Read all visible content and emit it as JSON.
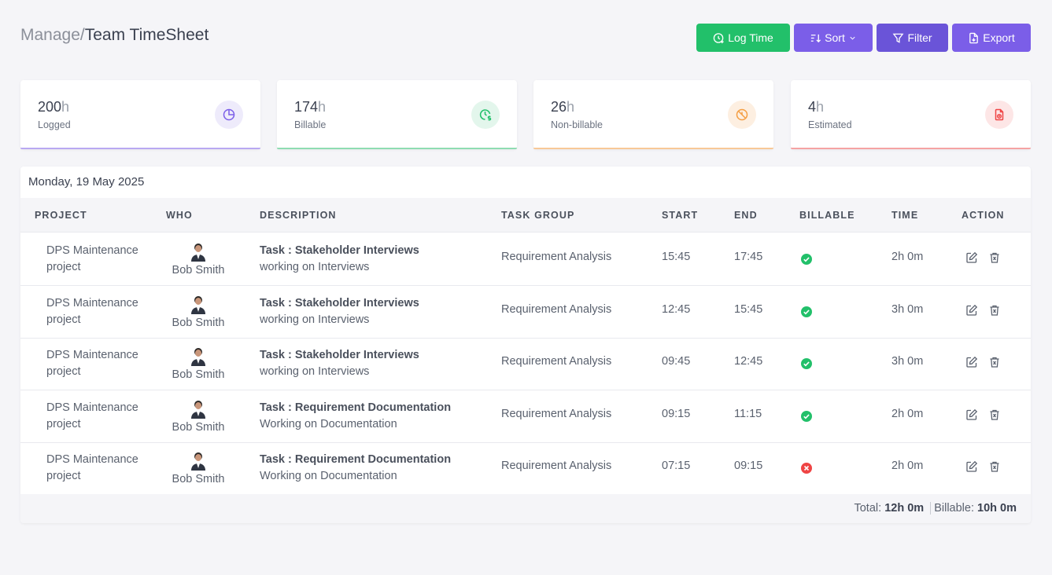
{
  "breadcrumb": {
    "parent": "Manage",
    "separator": "/",
    "current": "Team TimeSheet"
  },
  "toolbar": {
    "log_time": "Log Time",
    "sort": "Sort",
    "filter": "Filter",
    "export": "Export"
  },
  "stats": [
    {
      "value": "200",
      "unit": "h",
      "label": "Logged",
      "icon": "pie-chart-icon",
      "color": "#7b5ee8",
      "bg": "#eeebfb"
    },
    {
      "value": "174",
      "unit": "h",
      "label": "Billable",
      "icon": "billable-clock-icon",
      "color": "#22c06a",
      "bg": "#e3f6ec"
    },
    {
      "value": "26",
      "unit": "h",
      "label": "Non-billable",
      "icon": "non-billable-icon",
      "color": "#f59e42",
      "bg": "#fdefe1"
    },
    {
      "value": "4",
      "unit": "h",
      "label": "Estimated",
      "icon": "estimate-document-icon",
      "color": "#ef4444",
      "bg": "#fde6e6"
    }
  ],
  "timesheet": {
    "date": "Monday, 19 May 2025",
    "columns": [
      "PROJECT",
      "WHO",
      "DESCRIPTION",
      "TASK GROUP",
      "START",
      "END",
      "BILLABLE",
      "TIME",
      "ACTION"
    ],
    "rows": [
      {
        "project": "DPS Maintenance project",
        "who": "Bob Smith",
        "task": "Task : Stakeholder Interviews",
        "note": "working on Interviews",
        "group": "Requirement Analysis",
        "start": "15:45",
        "end": "17:45",
        "billable": true,
        "time": "2h 0m"
      },
      {
        "project": "DPS Maintenance project",
        "who": "Bob Smith",
        "task": "Task : Stakeholder Interviews",
        "note": "working on Interviews",
        "group": "Requirement Analysis",
        "start": "12:45",
        "end": "15:45",
        "billable": true,
        "time": "3h 0m"
      },
      {
        "project": "DPS Maintenance project",
        "who": "Bob Smith",
        "task": "Task : Stakeholder Interviews",
        "note": "working on Interviews",
        "group": "Requirement Analysis",
        "start": "09:45",
        "end": "12:45",
        "billable": true,
        "time": "3h 0m"
      },
      {
        "project": "DPS Maintenance project",
        "who": "Bob Smith",
        "task": "Task : Requirement Documentation",
        "note": "Working on Documentation",
        "group": "Requirement Analysis",
        "start": "09:15",
        "end": "11:15",
        "billable": true,
        "time": "2h 0m"
      },
      {
        "project": "DPS Maintenance project",
        "who": "Bob Smith",
        "task": "Task : Requirement Documentation",
        "note": "Working on Documentation",
        "group": "Requirement Analysis",
        "start": "07:15",
        "end": "09:15",
        "billable": false,
        "time": "2h 0m"
      }
    ],
    "footer": {
      "total_label": "Total:",
      "total_value": "12h 0m",
      "billable_label": "Billable:",
      "billable_value": "10h 0m"
    }
  },
  "colors": {
    "green": "#22c06a",
    "purple": "#7b5ee8",
    "red": "#ef4444"
  }
}
